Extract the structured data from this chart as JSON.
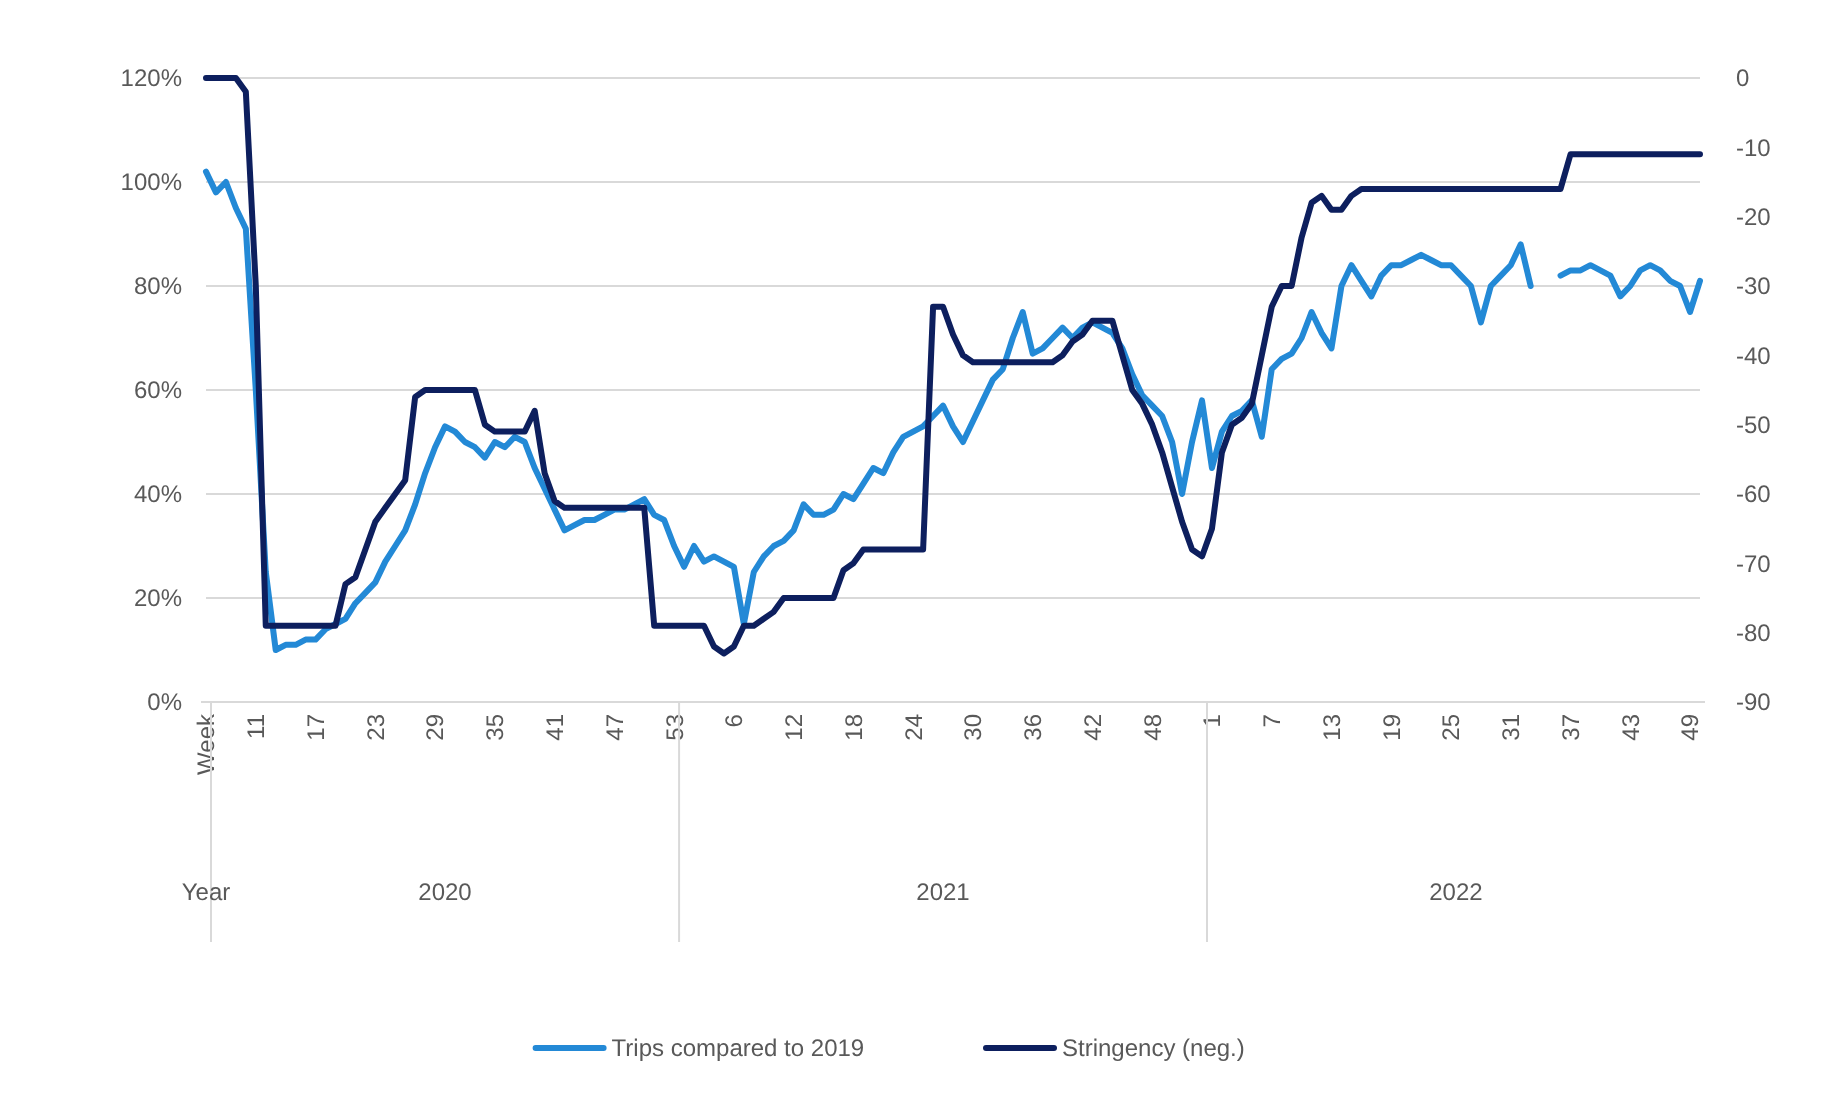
{
  "chart_data": {
    "type": "line",
    "categories": [
      "Week",
      null,
      null,
      null,
      null,
      "11",
      null,
      null,
      null,
      null,
      null,
      "17",
      null,
      null,
      null,
      null,
      null,
      "23",
      null,
      null,
      null,
      null,
      null,
      "29",
      null,
      null,
      null,
      null,
      null,
      "35",
      null,
      null,
      null,
      null,
      null,
      "41",
      null,
      null,
      null,
      null,
      null,
      "47",
      null,
      null,
      null,
      null,
      null,
      "53",
      null,
      null,
      null,
      null,
      null,
      "6",
      null,
      null,
      null,
      null,
      null,
      "12",
      null,
      null,
      null,
      null,
      null,
      "18",
      null,
      null,
      null,
      null,
      null,
      "24",
      null,
      null,
      null,
      null,
      null,
      "30",
      null,
      null,
      null,
      null,
      null,
      "36",
      null,
      null,
      null,
      null,
      null,
      "42",
      null,
      null,
      null,
      null,
      null,
      "48",
      null,
      null,
      null,
      null,
      null,
      "1",
      null,
      null,
      null,
      null,
      null,
      "7",
      null,
      null,
      null,
      null,
      null,
      "13",
      null,
      null,
      null,
      null,
      null,
      "19",
      null,
      null,
      null,
      null,
      null,
      "25",
      null,
      null,
      null,
      null,
      null,
      "31",
      null,
      null,
      null,
      null,
      null,
      "37",
      null,
      null,
      null,
      null,
      null,
      "43",
      null,
      null,
      null,
      null,
      null,
      "49",
      null
    ],
    "series": [
      {
        "name": "Trips compared to 2019",
        "color": "#2389d6",
        "values": [
          102,
          98,
          100,
          95,
          91,
          60,
          25,
          10,
          11,
          11,
          12,
          12,
          14,
          15,
          16,
          19,
          21,
          23,
          27,
          30,
          33,
          38,
          44,
          49,
          53,
          52,
          50,
          49,
          47,
          50,
          49,
          51,
          50,
          45,
          41,
          37,
          33,
          34,
          35,
          35,
          36,
          37,
          37,
          38,
          39,
          36,
          35,
          30,
          26,
          30,
          27,
          28,
          27,
          26,
          15,
          25,
          28,
          30,
          31,
          33,
          38,
          36,
          36,
          37,
          40,
          39,
          42,
          45,
          44,
          48,
          51,
          52,
          53,
          55,
          57,
          53,
          50,
          54,
          58,
          62,
          64,
          70,
          75,
          67,
          68,
          70,
          72,
          70,
          72,
          73,
          72,
          71,
          68,
          63,
          59,
          57,
          55,
          50,
          40,
          50,
          58,
          45,
          52,
          55,
          56,
          58,
          51,
          64,
          66,
          67,
          70,
          75,
          71,
          68,
          80,
          84,
          81,
          78,
          82,
          84,
          84,
          85,
          86,
          85,
          84,
          84,
          82,
          80,
          73,
          80,
          82,
          84,
          88,
          80,
          null,
          null,
          82,
          83,
          83,
          84,
          83,
          82,
          78,
          80,
          83,
          84,
          83,
          81,
          80,
          75,
          81
        ]
      },
      {
        "name": "Stringency (neg.)",
        "color": "#0d1f5e",
        "axis": "y2",
        "values": [
          0,
          0,
          0,
          0,
          -2,
          -30,
          -79,
          -79,
          -79,
          -79,
          -79,
          -79,
          -79,
          -79,
          -73,
          -72,
          -68,
          -64,
          -62,
          -60,
          -58,
          -46,
          -45,
          -45,
          -45,
          -45,
          -45,
          -45,
          -50,
          -51,
          -51,
          -51,
          -51,
          -48,
          -57,
          -61,
          -62,
          -62,
          -62,
          -62,
          -62,
          -62,
          -62,
          -62,
          -62,
          -79,
          -79,
          -79,
          -79,
          -79,
          -79,
          -82,
          -83,
          -82,
          -79,
          -79,
          -78,
          -77,
          -75,
          -75,
          -75,
          -75,
          -75,
          -75,
          -71,
          -70,
          -68,
          -68,
          -68,
          -68,
          -68,
          -68,
          -68,
          -33,
          -33,
          -37,
          -40,
          -41,
          -41,
          -41,
          -41,
          -41,
          -41,
          -41,
          -41,
          -41,
          -40,
          -38,
          -37,
          -35,
          -35,
          -35,
          -40,
          -45,
          -47,
          -50,
          -54,
          -59,
          -64,
          -68,
          -69,
          -65,
          -54,
          -50,
          -49,
          -47,
          -40,
          -33,
          -30,
          -30,
          -23,
          -18,
          -17,
          -19,
          -19,
          -17,
          -16,
          -16,
          -16,
          -16,
          -16,
          -16,
          -16,
          -16,
          -16,
          -16,
          -16,
          -16,
          -16,
          -16,
          -16,
          -16,
          -16,
          -16,
          -16,
          -16,
          -16,
          -11,
          -11,
          -11,
          -11,
          -11,
          -11,
          -11,
          -11,
          -11,
          -11,
          -11,
          -11,
          -11,
          -11
        ]
      }
    ],
    "ylim": [
      0,
      120
    ],
    "yticks": [
      {
        "value": 0,
        "label": "0%"
      },
      {
        "value": 20,
        "label": "20%"
      },
      {
        "value": 40,
        "label": "40%"
      },
      {
        "value": 60,
        "label": "60%"
      },
      {
        "value": 80,
        "label": "80%"
      },
      {
        "value": 100,
        "label": "100%"
      },
      {
        "value": 120,
        "label": "120%"
      }
    ],
    "y2lim": [
      -90,
      0
    ],
    "y2ticks": [
      -90,
      -80,
      -70,
      -60,
      -50,
      -40,
      -30,
      -20,
      -10,
      0
    ],
    "grid": "y",
    "legend": "bottom",
    "annotations": [
      "Year",
      "2020",
      "2021",
      "2022"
    ]
  }
}
